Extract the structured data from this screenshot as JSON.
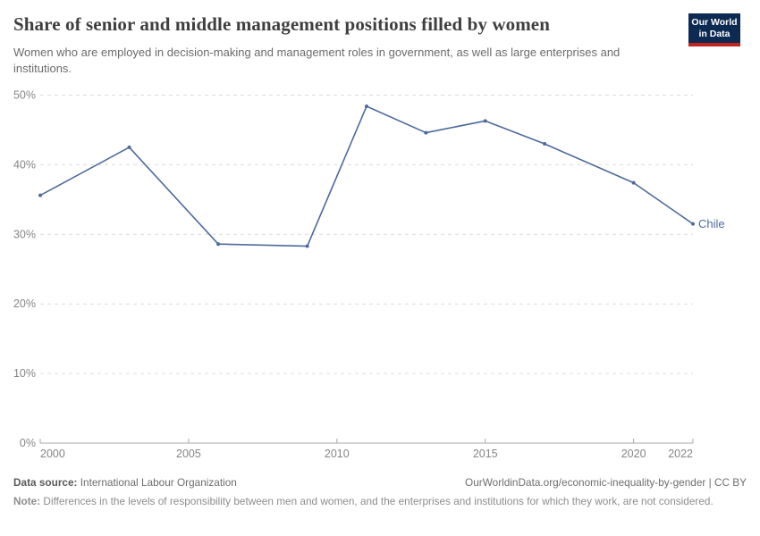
{
  "header": {
    "title": "Share of senior and middle management positions filled by women",
    "subtitle": "Women who are employed in decision-making and management roles in government, as well as large enterprises and institutions.",
    "logo": {
      "line1": "Our World",
      "line2": "in Data",
      "bg_color": "#0d2a52",
      "bar_color": "#c3231e",
      "text_color": "#ffffff"
    }
  },
  "chart_data": {
    "type": "line",
    "title": "Share of senior and middle management positions filled by women",
    "xlabel": "",
    "ylabel": "",
    "xlim": [
      2000,
      2022
    ],
    "ylim": [
      0,
      50
    ],
    "grid": "horizontal-dashed",
    "legend_position": "end-of-line-label",
    "xtick_values": [
      2000,
      2005,
      2010,
      2015,
      2020,
      2022
    ],
    "xtick_labels": [
      "2000",
      "2005",
      "2010",
      "2015",
      "2020",
      "2022"
    ],
    "ytick_values": [
      0,
      10,
      20,
      30,
      40,
      50
    ],
    "ytick_labels": [
      "0%",
      "10%",
      "20%",
      "30%",
      "40%",
      "50%"
    ],
    "grid_color": "#dcdcdc",
    "axis_color": "#a8a8a8",
    "tick_label_color": "#858585",
    "series": [
      {
        "name": "Chile",
        "color": "#4c6a9c",
        "x": [
          2000,
          2003,
          2006,
          2009,
          2011,
          2013,
          2015,
          2017,
          2020,
          2022
        ],
        "values": [
          35.6,
          42.5,
          28.6,
          28.3,
          48.4,
          44.6,
          46.3,
          43.0,
          37.4,
          31.5
        ]
      }
    ]
  },
  "footer": {
    "source_label": "Data source:",
    "source_value": " International Labour Organization",
    "url_text": "OurWorldinData.org/economic-inequality-by-gender | CC BY",
    "note_label": "Note:",
    "note_value": " Differences in the levels of responsibility between men and women, and the enterprises and institutions for which they work, are not considered."
  }
}
